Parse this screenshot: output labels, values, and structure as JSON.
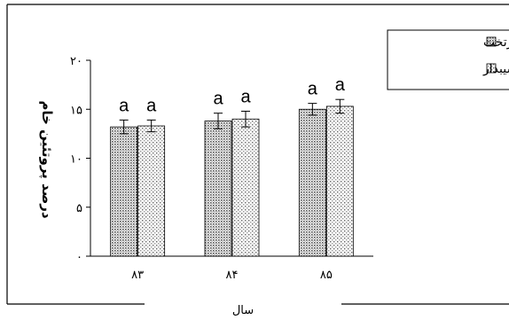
{
  "chart_data": {
    "type": "bar",
    "categories": [
      "۸۳",
      "۸۴",
      "۸۵"
    ],
    "ylabel": "درصد پروتئین خام",
    "xlabel": "سال",
    "ylim": [
      0,
      20
    ],
    "yticks": [
      0,
      5,
      10,
      15,
      20
    ],
    "ytick_labels": [
      "۰",
      "۵",
      "۱۰",
      "۱۵",
      "۲۰"
    ],
    "legend_position": "top-right",
    "grid": false,
    "series": [
      {
        "name": "بلوک سرتخت",
        "values": [
          13.2,
          13.8,
          15.0
        ],
        "errors": [
          0.7,
          0.8,
          0.6
        ],
        "labels": [
          "a",
          "a",
          "a"
        ],
        "color": "#c8c8c8"
      },
      {
        "name": "بلوک شیبدار",
        "values": [
          13.3,
          14.0,
          15.3
        ],
        "errors": [
          0.6,
          0.8,
          0.7
        ],
        "labels": [
          "a",
          "a",
          "a"
        ],
        "color": "#e4e4e4"
      }
    ]
  }
}
